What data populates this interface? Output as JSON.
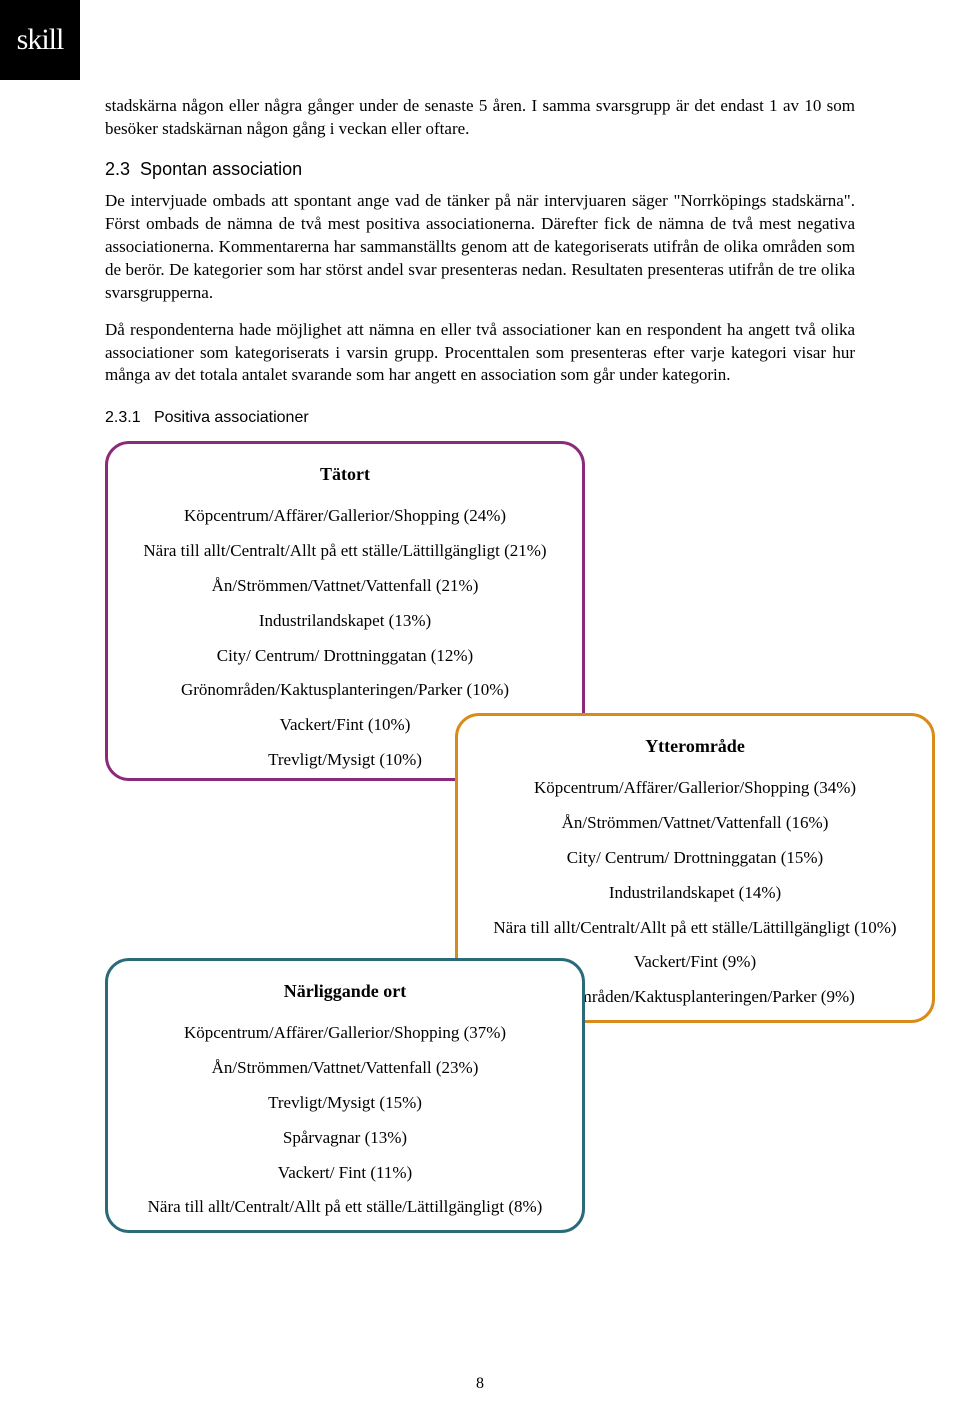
{
  "logo": "skill",
  "paragraphs": {
    "p1": "stadskärna någon eller några gånger under de senaste 5 åren. I samma svarsgrupp är det endast 1 av 10 som besöker stadskärnan någon gång i veckan eller oftare.",
    "p2": "De intervjuade ombads att spontant ange vad de tänker på när intervjuaren säger \"Norrköpings stadskärna\". Först ombads de nämna de två mest positiva associationerna. Därefter fick de nämna de två mest negativa associationerna. Kommentarerna har sammanställts genom att de kategoriserats utifrån de olika områden som de berör. De kategorier som har störst andel svar presenteras nedan. Resultaten presenteras utifrån de tre olika svarsgrupperna.",
    "p3": "Då respondenterna hade möjlighet att nämna en eller två associationer kan en respondent ha angett två olika associationer som kategoriserats i varsin grupp. Procenttalen som presenteras efter varje kategori visar hur många av det totala antalet svarande som har angett en association som går under kategorin."
  },
  "headings": {
    "h2_num": "2.3",
    "h2_text": "Spontan association",
    "h3_num": "2.3.1",
    "h3_text": "Positiva associationer"
  },
  "boxes": {
    "box1": {
      "border_color": "#8b2a7a",
      "title": "Tätort",
      "items": [
        "Köpcentrum/Affärer/Gallerior/Shopping (24%)",
        "Nära till allt/Centralt/Allt på ett ställe/Lättillgängligt (21%)",
        "Ån/Strömmen/Vattnet/Vattenfall (21%)",
        "Industrilandskapet (13%)",
        "City/ Centrum/ Drottninggatan (12%)",
        "Grönområden/Kaktusplanteringen/Parker (10%)",
        "Vackert/Fint (10%)",
        "Trevligt/Mysigt (10%)"
      ]
    },
    "box2": {
      "border_color": "#d98b1a",
      "title": "Ytterområde",
      "items": [
        "Köpcentrum/Affärer/Gallerior/Shopping (34%)",
        "Ån/Strömmen/Vattnet/Vattenfall (16%)",
        "City/ Centrum/ Drottninggatan (15%)",
        "Industrilandskapet (14%)",
        "Nära till allt/Centralt/Allt på ett ställe/Lättillgängligt (10%)",
        "Vackert/Fint (9%)",
        "Grönområden/Kaktusplanteringen/Parker (9%)"
      ]
    },
    "box3": {
      "border_color": "#2a6b7a",
      "title": "Närliggande ort",
      "items": [
        "Köpcentrum/Affärer/Gallerior/Shopping (37%)",
        "Ån/Strömmen/Vattnet/Vattenfall (23%)",
        "Trevligt/Mysigt (15%)",
        "Spårvagnar (13%)",
        "Vackert/ Fint (11%)",
        "Nära till allt/Centralt/Allt på ett ställe/Lättillgängligt (8%)"
      ]
    }
  },
  "page_number": "8"
}
